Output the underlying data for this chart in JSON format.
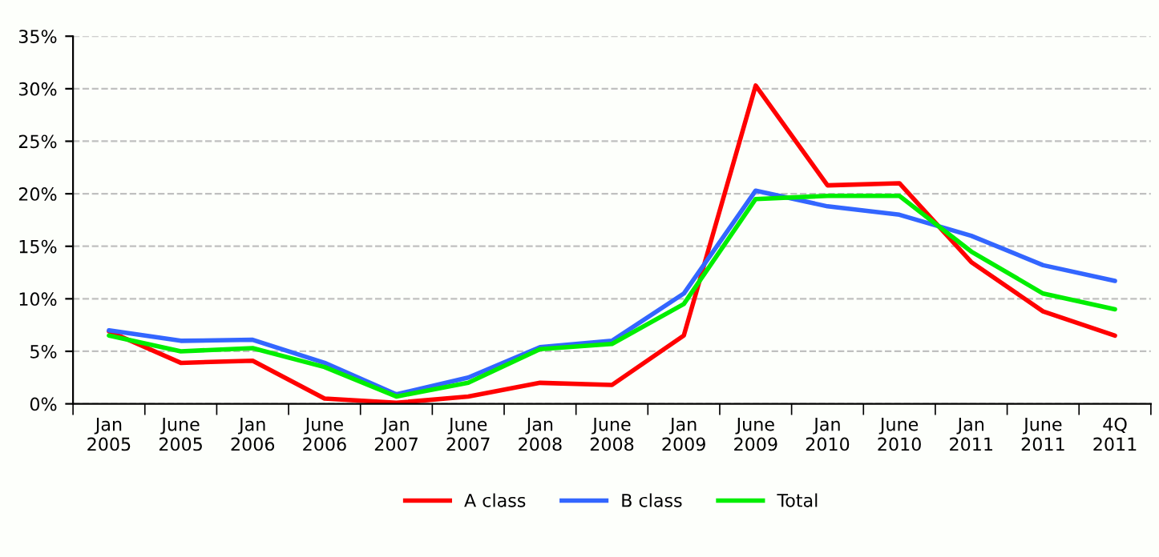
{
  "chart_data": {
    "type": "line",
    "categories": [
      "Jan\n2005",
      "June\n2005",
      "Jan\n2006",
      "June\n2006",
      "Jan\n2007",
      "June\n2007",
      "Jan\n2008",
      "June\n2008",
      "Jan\n2009",
      "June\n2009",
      "Jan\n2010",
      "June\n2010",
      "Jan\n2011",
      "June\n2011",
      "4Q\n2011"
    ],
    "series": [
      {
        "name": "A class",
        "color": "#ff0000",
        "values": [
          6.9,
          3.9,
          4.1,
          0.5,
          0.1,
          0.7,
          2.0,
          1.8,
          6.5,
          30.3,
          20.8,
          21.0,
          13.5,
          8.8,
          6.5
        ]
      },
      {
        "name": "B class",
        "color": "#3366ff",
        "values": [
          7.0,
          6.0,
          6.1,
          3.9,
          0.9,
          2.5,
          5.4,
          6.0,
          10.5,
          20.3,
          18.8,
          18.0,
          16.0,
          13.2,
          11.7
        ]
      },
      {
        "name": "Total",
        "color": "#00ee00",
        "values": [
          6.5,
          5.0,
          5.3,
          3.5,
          0.7,
          2.0,
          5.2,
          5.7,
          9.5,
          19.5,
          19.8,
          19.8,
          14.5,
          10.5,
          9.0
        ]
      }
    ],
    "ylim": [
      0,
      35
    ],
    "yticks": [
      {
        "value": 0,
        "label": "0%"
      },
      {
        "value": 5,
        "label": "5%"
      },
      {
        "value": 10,
        "label": "10%"
      },
      {
        "value": 15,
        "label": "15%"
      },
      {
        "value": 20,
        "label": "20%"
      },
      {
        "value": 25,
        "label": "25%"
      },
      {
        "value": 30,
        "label": "30%"
      },
      {
        "value": 35,
        "label": "35%"
      }
    ],
    "grid": "y",
    "legend": "bottom",
    "marker": "none",
    "line_style": "solid"
  }
}
